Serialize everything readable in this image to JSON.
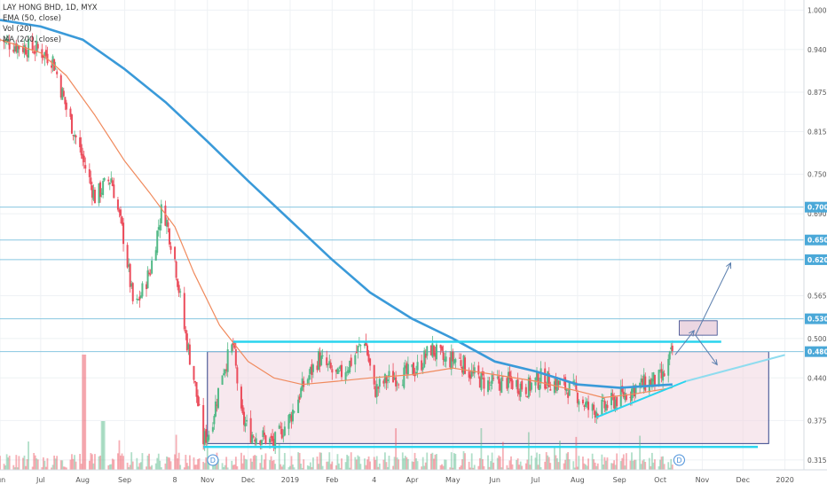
{
  "legend": {
    "title": "LAY HONG BHD, 1D, MYX",
    "ema_label": "EMA (50, close)",
    "vol_label": "Vol (20)",
    "ma_label": "MA (200, close)"
  },
  "colors": {
    "up": "#53b987",
    "down": "#eb4d5c",
    "ema": "#f08a5d",
    "ma": "#3a9ad9",
    "hline": "#87c6e0",
    "cyan": "#2ad4ee",
    "box_fill": "#f0d6e0",
    "box_stroke": "#33448a",
    "target_fill": "#ecd7e2",
    "arrow": "#5b7fae",
    "price_badge": "#4aa8d8"
  },
  "chart_data": {
    "type": "candlestick",
    "title": "LAY HONG BHD, 1D, MYX",
    "x_ticks": [
      "Jun",
      "Jul",
      "Aug",
      "Sep",
      "8",
      "Nov",
      "Dec",
      "2019",
      "Feb",
      "4",
      "Apr",
      "May",
      "Jun",
      "Jul",
      "Aug",
      "Sep",
      "Oct",
      "Nov",
      "Dec",
      "2020"
    ],
    "x_start": "2018-06-01",
    "x_end": "2020-01-15",
    "x_tick_dates": [
      "2018-06-01",
      "2018-07-01",
      "2018-08-01",
      "2018-09-01",
      "2018-10-08",
      "2018-11-01",
      "2018-12-01",
      "2019-01-01",
      "2019-02-01",
      "2019-03-04",
      "2019-04-01",
      "2019-05-01",
      "2019-06-01",
      "2019-07-01",
      "2019-08-01",
      "2019-09-01",
      "2019-10-01",
      "2019-11-01",
      "2019-12-01",
      "2020-01-01"
    ],
    "y_ticks": [
      1.0,
      0.94,
      0.875,
      0.815,
      0.75,
      0.69,
      0.565,
      0.5,
      0.44,
      0.375,
      0.315
    ],
    "y_range": [
      0.3,
      1.01
    ],
    "y_scale": "linear",
    "horizontal_levels": [
      0.7,
      0.65,
      0.62,
      0.53,
      0.48
    ],
    "price_badges": [
      "0.700",
      "0.650",
      "0.620",
      "0.530",
      "0.480"
    ],
    "close_path": [
      [
        "2018-06-01",
        0.955
      ],
      [
        "2018-06-15",
        0.945
      ],
      [
        "2018-06-29",
        0.94
      ],
      [
        "2018-07-10",
        0.925
      ],
      [
        "2018-07-20",
        0.85
      ],
      [
        "2018-07-31",
        0.78
      ],
      [
        "2018-08-10",
        0.715
      ],
      [
        "2018-08-22",
        0.745
      ],
      [
        "2018-09-01",
        0.645
      ],
      [
        "2018-09-08",
        0.54
      ],
      [
        "2018-09-20",
        0.605
      ],
      [
        "2018-09-29",
        0.705
      ],
      [
        "2018-10-08",
        0.62
      ],
      [
        "2018-10-15",
        0.515
      ],
      [
        "2018-10-22",
        0.44
      ],
      [
        "2018-10-29",
        0.345
      ],
      [
        "2018-11-03",
        0.36
      ],
      [
        "2018-11-12",
        0.45
      ],
      [
        "2018-11-20",
        0.49
      ],
      [
        "2018-11-26",
        0.38
      ],
      [
        "2018-12-03",
        0.355
      ],
      [
        "2018-12-12",
        0.35
      ],
      [
        "2018-12-20",
        0.34
      ],
      [
        "2019-01-01",
        0.38
      ],
      [
        "2019-01-10",
        0.425
      ],
      [
        "2019-01-22",
        0.47
      ],
      [
        "2019-02-05",
        0.44
      ],
      [
        "2019-02-15",
        0.465
      ],
      [
        "2019-02-25",
        0.5
      ],
      [
        "2019-03-04",
        0.42
      ],
      [
        "2019-03-15",
        0.44
      ],
      [
        "2019-03-28",
        0.445
      ],
      [
        "2019-04-05",
        0.455
      ],
      [
        "2019-04-15",
        0.485
      ],
      [
        "2019-04-25",
        0.465
      ],
      [
        "2019-05-05",
        0.47
      ],
      [
        "2019-05-15",
        0.445
      ],
      [
        "2019-05-28",
        0.43
      ],
      [
        "2019-06-10",
        0.435
      ],
      [
        "2019-06-25",
        0.425
      ],
      [
        "2019-07-05",
        0.44
      ],
      [
        "2019-07-18",
        0.43
      ],
      [
        "2019-07-30",
        0.42
      ],
      [
        "2019-08-10",
        0.39
      ],
      [
        "2019-08-20",
        0.395
      ],
      [
        "2019-09-01",
        0.41
      ],
      [
        "2019-09-12",
        0.425
      ],
      [
        "2019-09-25",
        0.435
      ],
      [
        "2019-10-03",
        0.44
      ],
      [
        "2019-10-10",
        0.48
      ]
    ],
    "ema_50": [
      [
        "2018-06-01",
        0.955
      ],
      [
        "2018-07-01",
        0.935
      ],
      [
        "2018-07-20",
        0.9
      ],
      [
        "2018-08-10",
        0.84
      ],
      [
        "2018-09-01",
        0.77
      ],
      [
        "2018-09-20",
        0.72
      ],
      [
        "2018-10-08",
        0.67
      ],
      [
        "2018-10-22",
        0.6
      ],
      [
        "2018-11-10",
        0.52
      ],
      [
        "2018-12-01",
        0.465
      ],
      [
        "2018-12-20",
        0.44
      ],
      [
        "2019-01-10",
        0.43
      ],
      [
        "2019-02-05",
        0.435
      ],
      [
        "2019-03-01",
        0.44
      ],
      [
        "2019-04-01",
        0.445
      ],
      [
        "2019-05-01",
        0.455
      ],
      [
        "2019-06-01",
        0.445
      ],
      [
        "2019-07-01",
        0.435
      ],
      [
        "2019-08-01",
        0.42
      ],
      [
        "2019-08-20",
        0.41
      ],
      [
        "2019-09-10",
        0.415
      ],
      [
        "2019-10-10",
        0.425
      ]
    ],
    "ma_200": [
      [
        "2018-06-01",
        0.985
      ],
      [
        "2018-07-01",
        0.975
      ],
      [
        "2018-08-01",
        0.955
      ],
      [
        "2018-09-01",
        0.91
      ],
      [
        "2018-10-01",
        0.86
      ],
      [
        "2018-11-01",
        0.8
      ],
      [
        "2018-12-01",
        0.74
      ],
      [
        "2019-01-01",
        0.68
      ],
      [
        "2019-02-01",
        0.62
      ],
      [
        "2019-03-01",
        0.57
      ],
      [
        "2019-04-01",
        0.53
      ],
      [
        "2019-05-01",
        0.5
      ],
      [
        "2019-06-01",
        0.465
      ],
      [
        "2019-07-01",
        0.45
      ],
      [
        "2019-08-01",
        0.43
      ],
      [
        "2019-09-01",
        0.425
      ],
      [
        "2019-10-10",
        0.43
      ]
    ],
    "range_box": {
      "x_from": "2018-11-01",
      "x_to": "2019-12-20",
      "y_low": 0.34,
      "y_high": 0.48
    },
    "top_line": {
      "x_from": "2018-11-20",
      "x_to": "2019-11-15",
      "y": 0.495
    },
    "bottom_line": {
      "x_from": "2018-10-29",
      "x_to": "2019-12-12",
      "y": 0.335
    },
    "trendline": [
      [
        "2019-08-15",
        0.38
      ],
      [
        "2019-10-20",
        0.435
      ]
    ],
    "trendline_ext": [
      [
        "2019-10-20",
        0.435
      ],
      [
        "2020-01-01",
        0.475
      ]
    ],
    "target_box": {
      "x_from": "2019-10-15",
      "x_to": "2019-11-12",
      "y_low": 0.505,
      "y_high": 0.527
    },
    "arrows": [
      {
        "from": [
          "2019-10-27",
          0.505
        ],
        "to": [
          "2019-11-22",
          0.615
        ]
      },
      {
        "from": [
          "2019-10-27",
          0.505
        ],
        "to": [
          "2019-11-12",
          0.46
        ]
      }
    ],
    "dividend_markers": [
      {
        "date": "2018-11-05",
        "label": "D"
      },
      {
        "date": "2019-10-15",
        "label": "D"
      }
    ]
  }
}
